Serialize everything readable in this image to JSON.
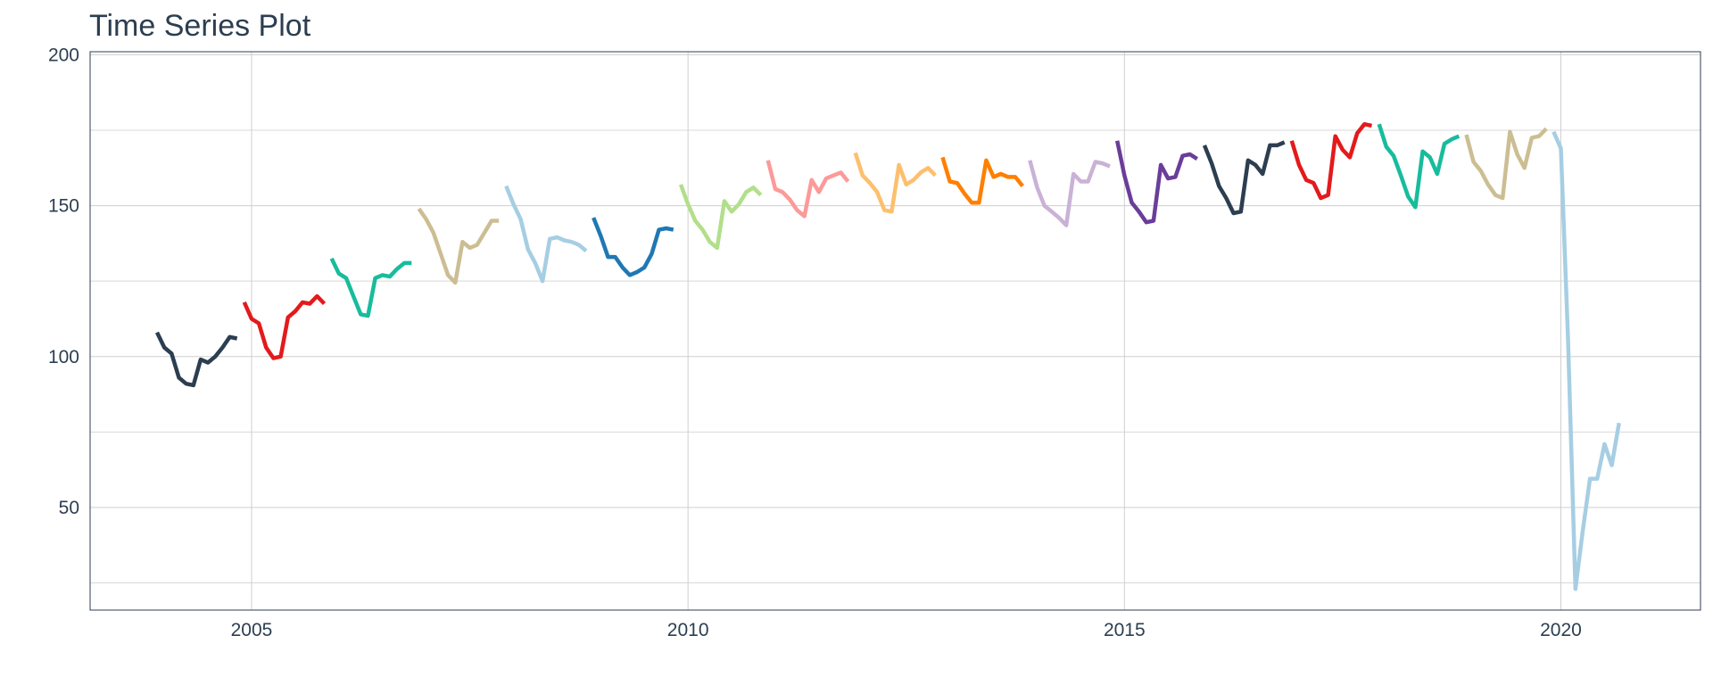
{
  "chart_data": {
    "type": "line",
    "title": "Time Series Plot",
    "xlabel": "",
    "ylabel": "",
    "xlim": [
      2003.15,
      2021.6
    ],
    "ylim": [
      16,
      201
    ],
    "x_ticks": [
      {
        "value": 2005,
        "label": "2005"
      },
      {
        "value": 2010,
        "label": "2010"
      },
      {
        "value": 2015,
        "label": "2015"
      },
      {
        "value": 2020,
        "label": "2020"
      }
    ],
    "y_ticks": [
      {
        "value": 50,
        "label": "50"
      },
      {
        "value": 100,
        "label": "100"
      },
      {
        "value": 150,
        "label": "150"
      },
      {
        "value": 200,
        "label": "200"
      }
    ],
    "y_minor_ticks": [
      25,
      75,
      125,
      175
    ],
    "x_minor_ticks": [],
    "grid": true,
    "legend": "none",
    "series": [
      {
        "year": 2004,
        "color": "#2c3e50",
        "values": [
          108,
          103,
          101,
          93,
          91,
          90.5,
          99,
          98,
          100,
          103,
          106.5,
          106
        ]
      },
      {
        "year": 2005,
        "color": "#e31a1c",
        "values": [
          118,
          112.5,
          111,
          103,
          99.5,
          100,
          113,
          115,
          118,
          117.5,
          120,
          117.5
        ]
      },
      {
        "year": 2006,
        "color": "#18bc9c",
        "values": [
          132.5,
          127.5,
          126,
          120,
          114,
          113.5,
          126,
          127,
          126.5,
          129,
          131,
          131
        ]
      },
      {
        "year": 2007,
        "color": "#ccbe93",
        "values": [
          149,
          145.5,
          141,
          134,
          127,
          124.5,
          138,
          136,
          137,
          141,
          145,
          145
        ]
      },
      {
        "year": 2008,
        "color": "#a6cee3",
        "values": [
          156.5,
          150.5,
          145.5,
          135.5,
          131,
          125,
          139,
          139.5,
          138.5,
          138,
          137,
          135
        ]
      },
      {
        "year": 2009,
        "color": "#1f78b4",
        "values": [
          146,
          140,
          133,
          133,
          129.5,
          127,
          128,
          129.5,
          134,
          142,
          142.5,
          142
        ]
      },
      {
        "year": 2010,
        "color": "#b2df8a",
        "values": [
          157,
          150.5,
          145,
          142,
          138,
          136,
          151.5,
          148,
          150.5,
          154.5,
          156,
          153.5
        ]
      },
      {
        "year": 2011,
        "color": "#fb9a99",
        "values": [
          165,
          155.5,
          154.5,
          152,
          148.5,
          146.5,
          158.5,
          154.5,
          159,
          160,
          161,
          158
        ]
      },
      {
        "year": 2012,
        "color": "#fdbf6f",
        "values": [
          167.5,
          160,
          157.5,
          154.5,
          148.5,
          148,
          163.5,
          157,
          158.5,
          161,
          162.5,
          160
        ]
      },
      {
        "year": 2013,
        "color": "#ff7f00",
        "values": [
          166,
          158,
          157.5,
          154,
          151,
          151,
          165,
          159.5,
          160.5,
          159.5,
          159.5,
          156.5
        ]
      },
      {
        "year": 2014,
        "color": "#cab2d6",
        "values": [
          165,
          156,
          150,
          148,
          146,
          143.5,
          160.5,
          158,
          158,
          164.5,
          164,
          163
        ]
      },
      {
        "year": 2015,
        "color": "#6a3d9a",
        "values": [
          171.5,
          160,
          151,
          148,
          144.5,
          145,
          163.5,
          159,
          159.5,
          166.5,
          167,
          165.5
        ]
      },
      {
        "year": 2016,
        "color": "#2c3e50",
        "values": [
          170,
          164,
          156.5,
          152.5,
          147.5,
          148,
          165,
          163.5,
          160.5,
          170,
          170,
          171
        ]
      },
      {
        "year": 2017,
        "color": "#e31a1c",
        "values": [
          171.5,
          163.5,
          158.5,
          157.5,
          152.5,
          153.5,
          173,
          168.5,
          166,
          174,
          177,
          176.5
        ]
      },
      {
        "year": 2018,
        "color": "#18bc9c",
        "values": [
          177,
          169.5,
          166.5,
          160,
          153,
          149.5,
          168,
          166,
          160.5,
          170.5,
          172,
          173
        ]
      },
      {
        "year": 2019,
        "color": "#ccbe93",
        "values": [
          173.5,
          164.5,
          161.5,
          157,
          153.5,
          152.5,
          174.5,
          167,
          162.5,
          172.5,
          173,
          175.5
        ]
      },
      {
        "year": 2020,
        "color": "#a6cee3",
        "values": [
          174.5,
          169,
          105,
          23,
          42,
          59.5,
          59.5,
          71,
          64,
          78
        ]
      }
    ]
  }
}
